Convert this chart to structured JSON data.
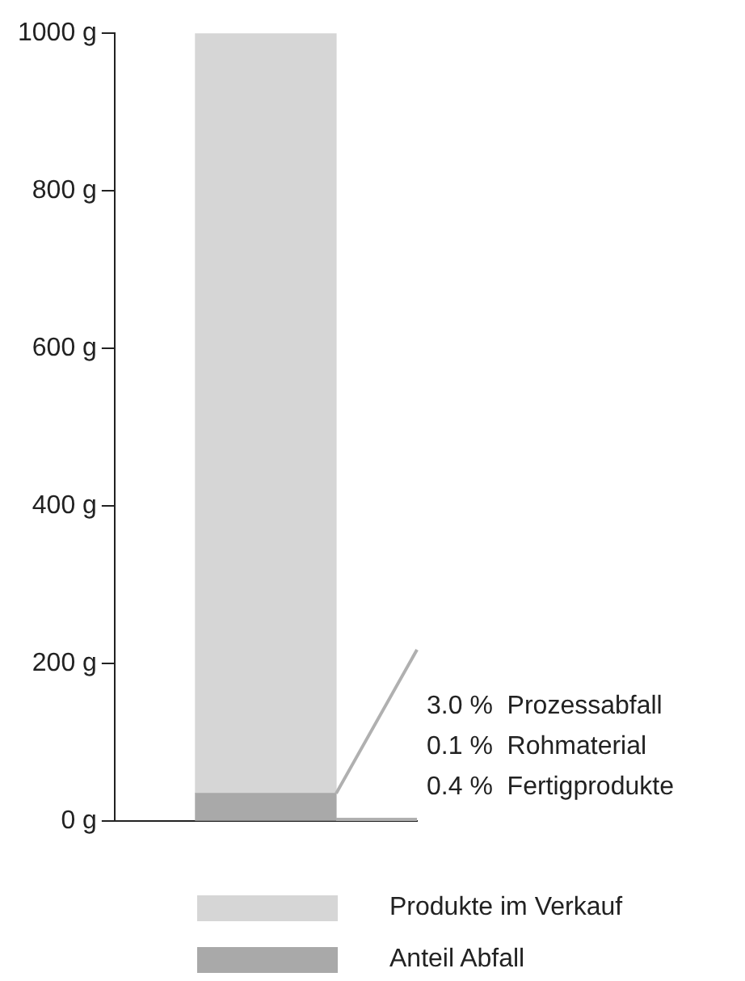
{
  "chart_data": {
    "type": "bar",
    "stacked": true,
    "categories": [
      null
    ],
    "series": [
      {
        "name": "Anteil Abfall",
        "color": "#a9a9a9",
        "values": [
          35
        ]
      },
      {
        "name": "Produkte im Verkauf",
        "color": "#d6d6d6",
        "values": [
          965
        ]
      }
    ],
    "ylim": [
      0,
      1000
    ],
    "yticks": [
      {
        "value": 0,
        "label": "0 g"
      },
      {
        "value": 200,
        "label": "200 g"
      },
      {
        "value": 400,
        "label": "400 g"
      },
      {
        "value": 600,
        "label": "600 g"
      },
      {
        "value": 800,
        "label": "800 g"
      },
      {
        "value": 1000,
        "label": "1000 g"
      }
    ],
    "grid": false,
    "legend": "bottom",
    "annotations": [
      "3.0 %  Prozessabfall",
      "0.1 %  Rohmaterial",
      "0.4 %  Fertigprodukte"
    ]
  }
}
